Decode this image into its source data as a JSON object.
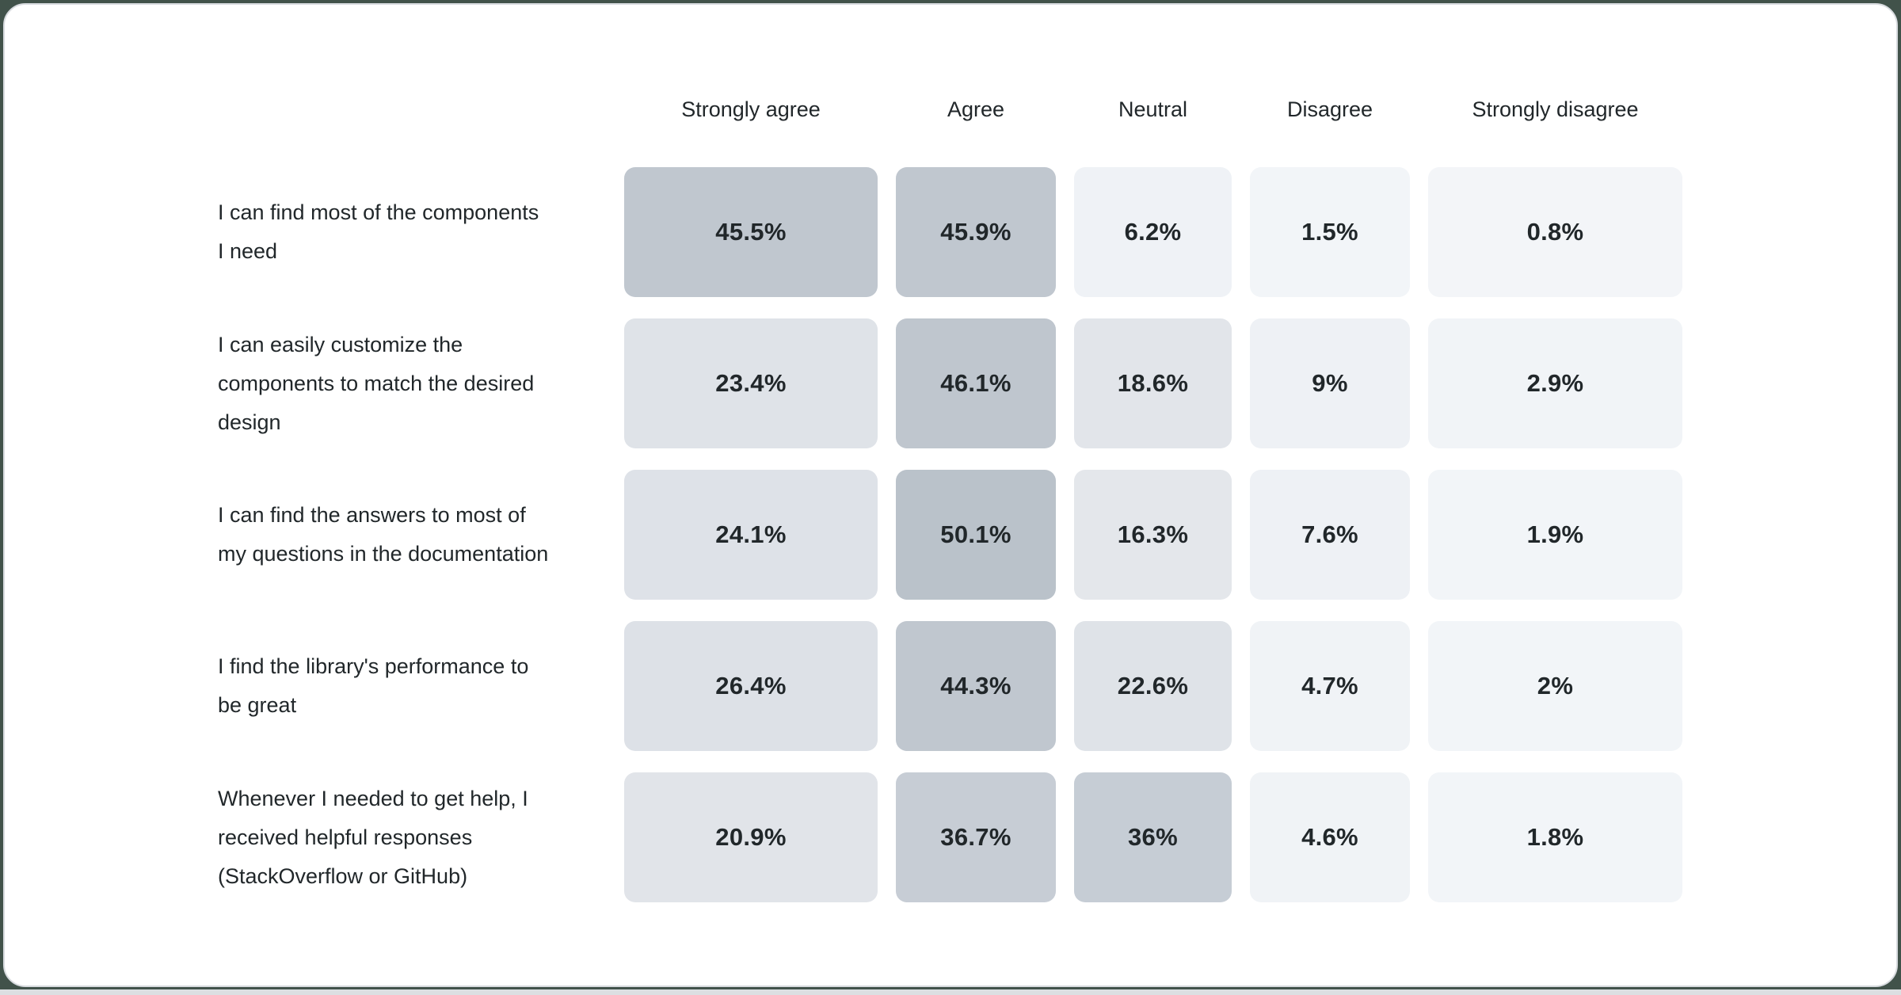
{
  "theme": {
    "page_background": "#41524a",
    "card_background": "#ffffff",
    "card_border": "#d8dbdf",
    "bottom_strip": "#dcdfe2",
    "text_color": "#21272a",
    "scale_low_color": "#f2f5f8",
    "scale_high_color": "#bac2ca"
  },
  "chart_data": {
    "type": "heatmap",
    "title": "",
    "layout": {
      "column_headers_position": "top",
      "row_labels_position": "left",
      "cell_values_unit": "%",
      "grid": false,
      "legend": false
    },
    "columns": [
      "Strongly agree",
      "Agree",
      "Neutral",
      "Disagree",
      "Strongly disagree"
    ],
    "rows": [
      {
        "label": "I can find most of the components I need",
        "values": [
          "45.5%",
          "45.9%",
          "6.2%",
          "1.5%",
          "0.8%"
        ],
        "numbers": [
          45.5,
          45.9,
          6.2,
          1.5,
          0.8
        ],
        "colors": [
          "#c0c7cf",
          "#c0c7cf",
          "#eff2f6",
          "#f2f5f8",
          "#f3f5f8"
        ]
      },
      {
        "label": "I can easily customize the components to match the desired design",
        "values": [
          "23.4%",
          "46.1%",
          "18.6%",
          "9%",
          "2.9%"
        ],
        "numbers": [
          23.4,
          46.1,
          18.6,
          9,
          2.9
        ],
        "colors": [
          "#dfe3e8",
          "#bfc6ce",
          "#e2e5ea",
          "#eef1f5",
          "#f1f4f7"
        ]
      },
      {
        "label": "I can find the answers to most of my questions in the documentation",
        "values": [
          "24.1%",
          "50.1%",
          "16.3%",
          "7.6%",
          "1.9%"
        ],
        "numbers": [
          24.1,
          50.1,
          16.3,
          7.6,
          1.9
        ],
        "colors": [
          "#dee2e8",
          "#bac2ca",
          "#e4e7eb",
          "#eef1f5",
          "#f2f5f8"
        ]
      },
      {
        "label": "I find the library's performance to be great",
        "values": [
          "26.4%",
          "44.3%",
          "22.6%",
          "4.7%",
          "2%"
        ],
        "numbers": [
          26.4,
          44.3,
          22.6,
          4.7,
          2
        ],
        "colors": [
          "#dde1e7",
          "#c0c7cf",
          "#dfe3e8",
          "#f0f3f6",
          "#f2f5f8"
        ]
      },
      {
        "label": "Whenever I needed to get help, I received helpful responses (StackOverflow or GitHub)",
        "values": [
          "20.9%",
          "36.7%",
          "36%",
          "4.6%",
          "1.8%"
        ],
        "numbers": [
          20.9,
          36.7,
          36,
          4.6,
          1.8
        ],
        "colors": [
          "#e1e4e9",
          "#c7cdd5",
          "#c6cdd5",
          "#f0f3f6",
          "#f2f5f8"
        ]
      }
    ]
  }
}
